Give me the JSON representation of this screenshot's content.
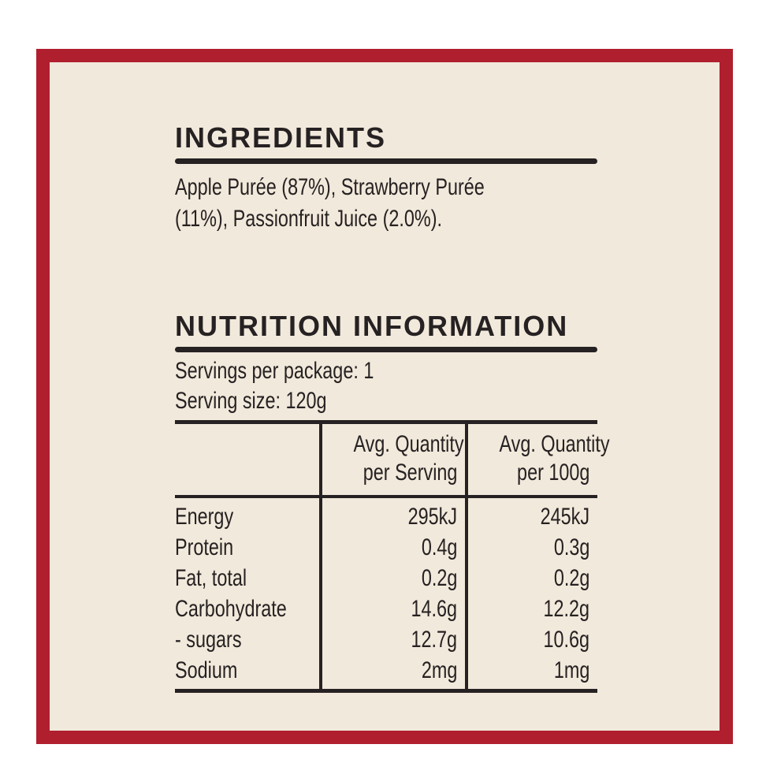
{
  "panel": {
    "colors": {
      "border_red": "#b01f2e",
      "background_cream": "#f1e9db",
      "text_dark": "#262122",
      "page_white": "#ffffff"
    }
  },
  "ingredients": {
    "title": "INGREDIENTS",
    "lines": [
      "Apple Purée (87%), Strawberry Purée",
      "(11%), Passionfruit Juice (2.0%)."
    ]
  },
  "nutrition": {
    "title": "NUTRITION INFORMATION",
    "servings_per_package": "Servings per package: 1",
    "serving_size": "Serving size: 120g",
    "table": {
      "header": [
        {
          "line1": "Avg. Quantity",
          "line2": "per Serving"
        },
        {
          "line1": "Avg. Quantity",
          "line2": "per 100g"
        }
      ],
      "rows": [
        {
          "label": "Energy",
          "per_serving": "295kJ",
          "per_100g": "245kJ"
        },
        {
          "label": "Protein",
          "per_serving": "0.4g",
          "per_100g": "0.3g"
        },
        {
          "label": "Fat, total",
          "per_serving": "0.2g",
          "per_100g": "0.2g"
        },
        {
          "label": "Carbohydrate",
          "per_serving": "14.6g",
          "per_100g": "12.2g"
        },
        {
          "label": "- sugars",
          "per_serving": "12.7g",
          "per_100g": "10.6g"
        },
        {
          "label": "Sodium",
          "per_serving": "2mg",
          "per_100g": "1mg"
        }
      ]
    }
  }
}
